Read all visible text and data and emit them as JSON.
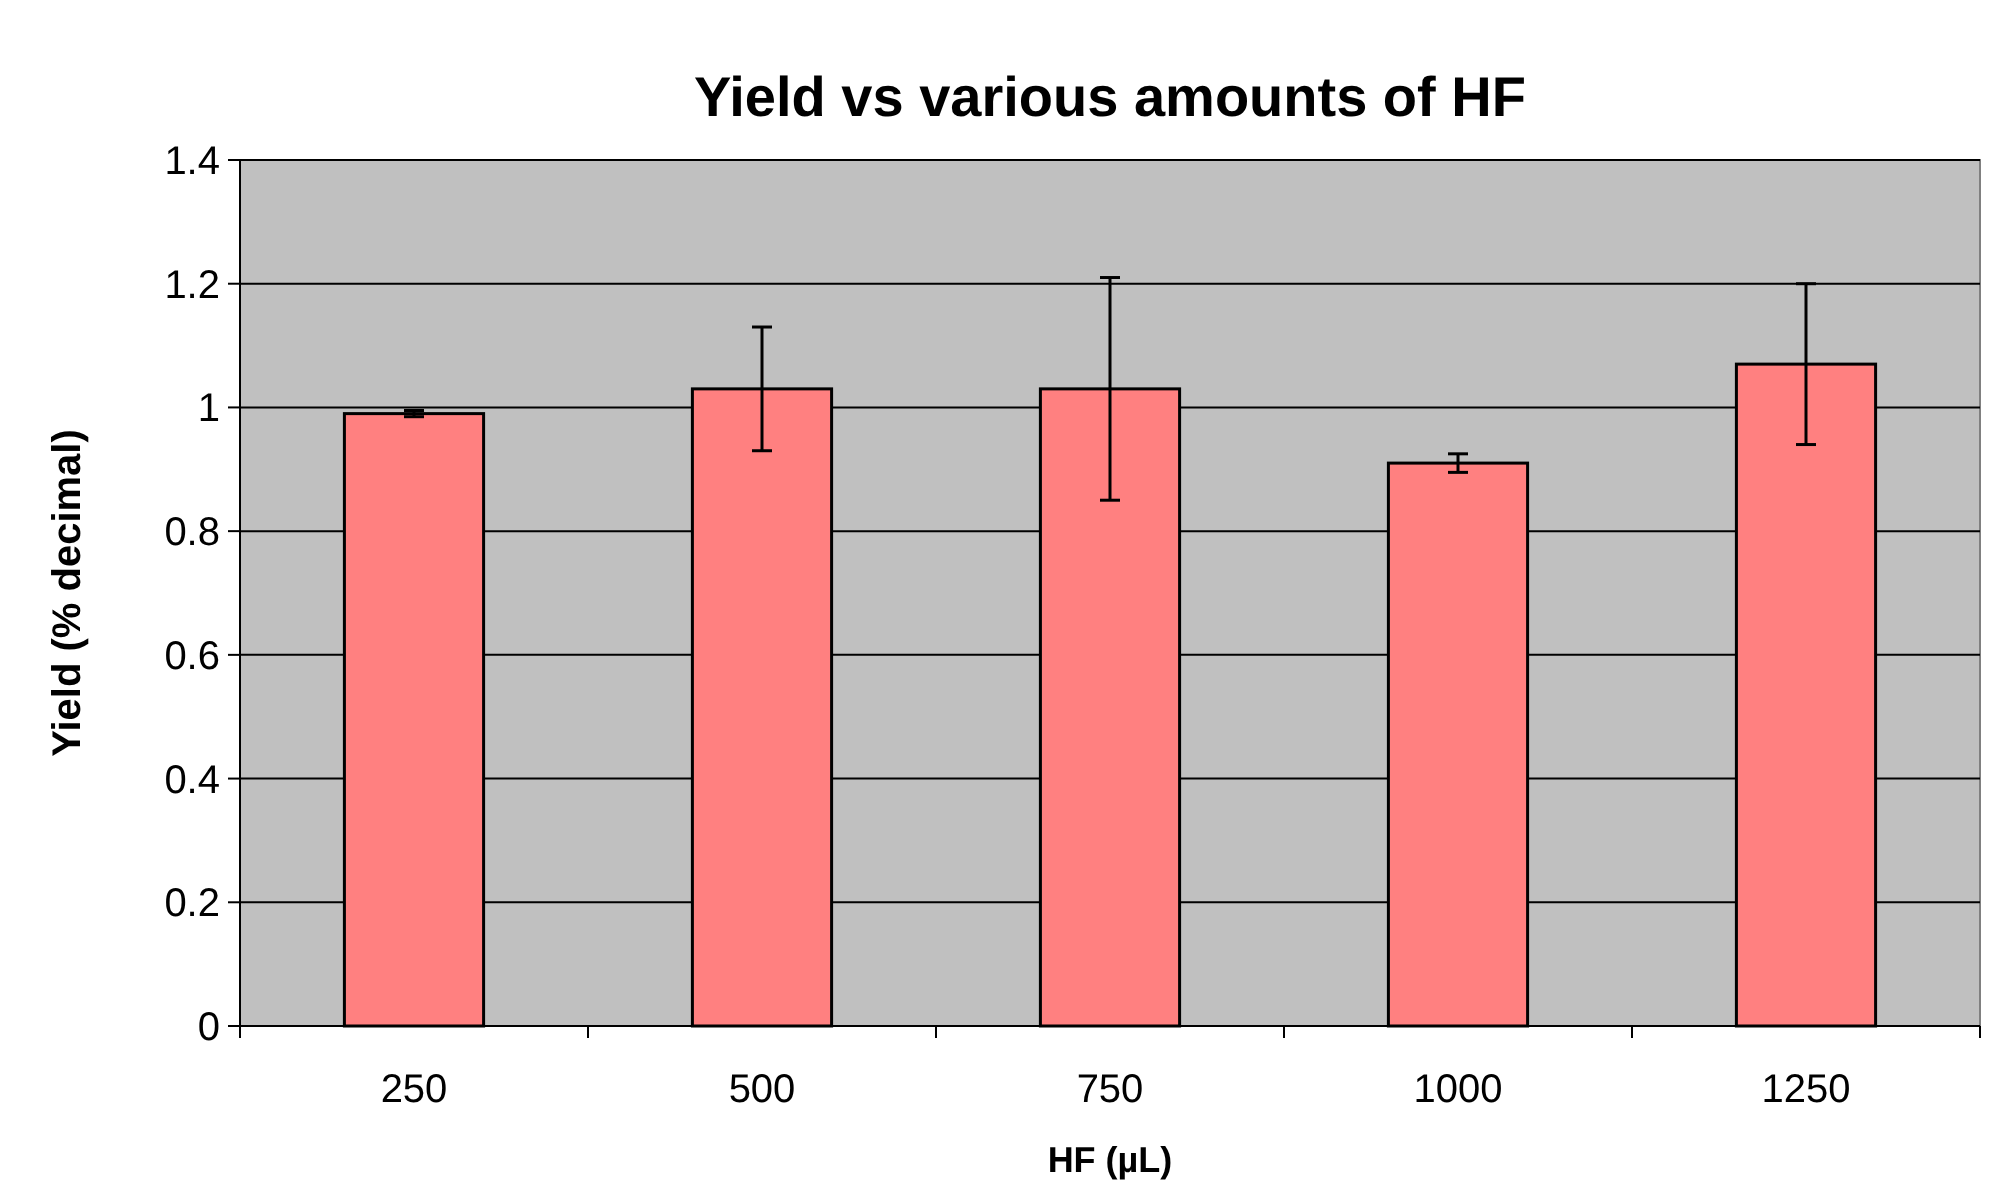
{
  "chart_data": {
    "type": "bar",
    "title": "Yield vs various amounts of HF",
    "xlabel": "HF (µL)",
    "ylabel": "Yield (% decimal)",
    "categories": [
      "250",
      "500",
      "750",
      "1000",
      "1250"
    ],
    "values": [
      0.99,
      1.03,
      1.03,
      0.91,
      1.07
    ],
    "errors": [
      0.005,
      0.1,
      0.18,
      0.015,
      0.13
    ],
    "color": "#ff8080",
    "ylim": [
      0,
      1.4
    ],
    "yticks": [
      {
        "value": 0,
        "label": "0"
      },
      {
        "value": 0.2,
        "label": "0.2"
      },
      {
        "value": 0.4,
        "label": "0.4"
      },
      {
        "value": 0.6,
        "label": "0.6"
      },
      {
        "value": 0.8,
        "label": "0.8"
      },
      {
        "value": 1,
        "label": "1"
      },
      {
        "value": 1.2,
        "label": "1.2"
      },
      {
        "value": 1.4,
        "label": "1.4"
      }
    ],
    "grid": "y"
  }
}
